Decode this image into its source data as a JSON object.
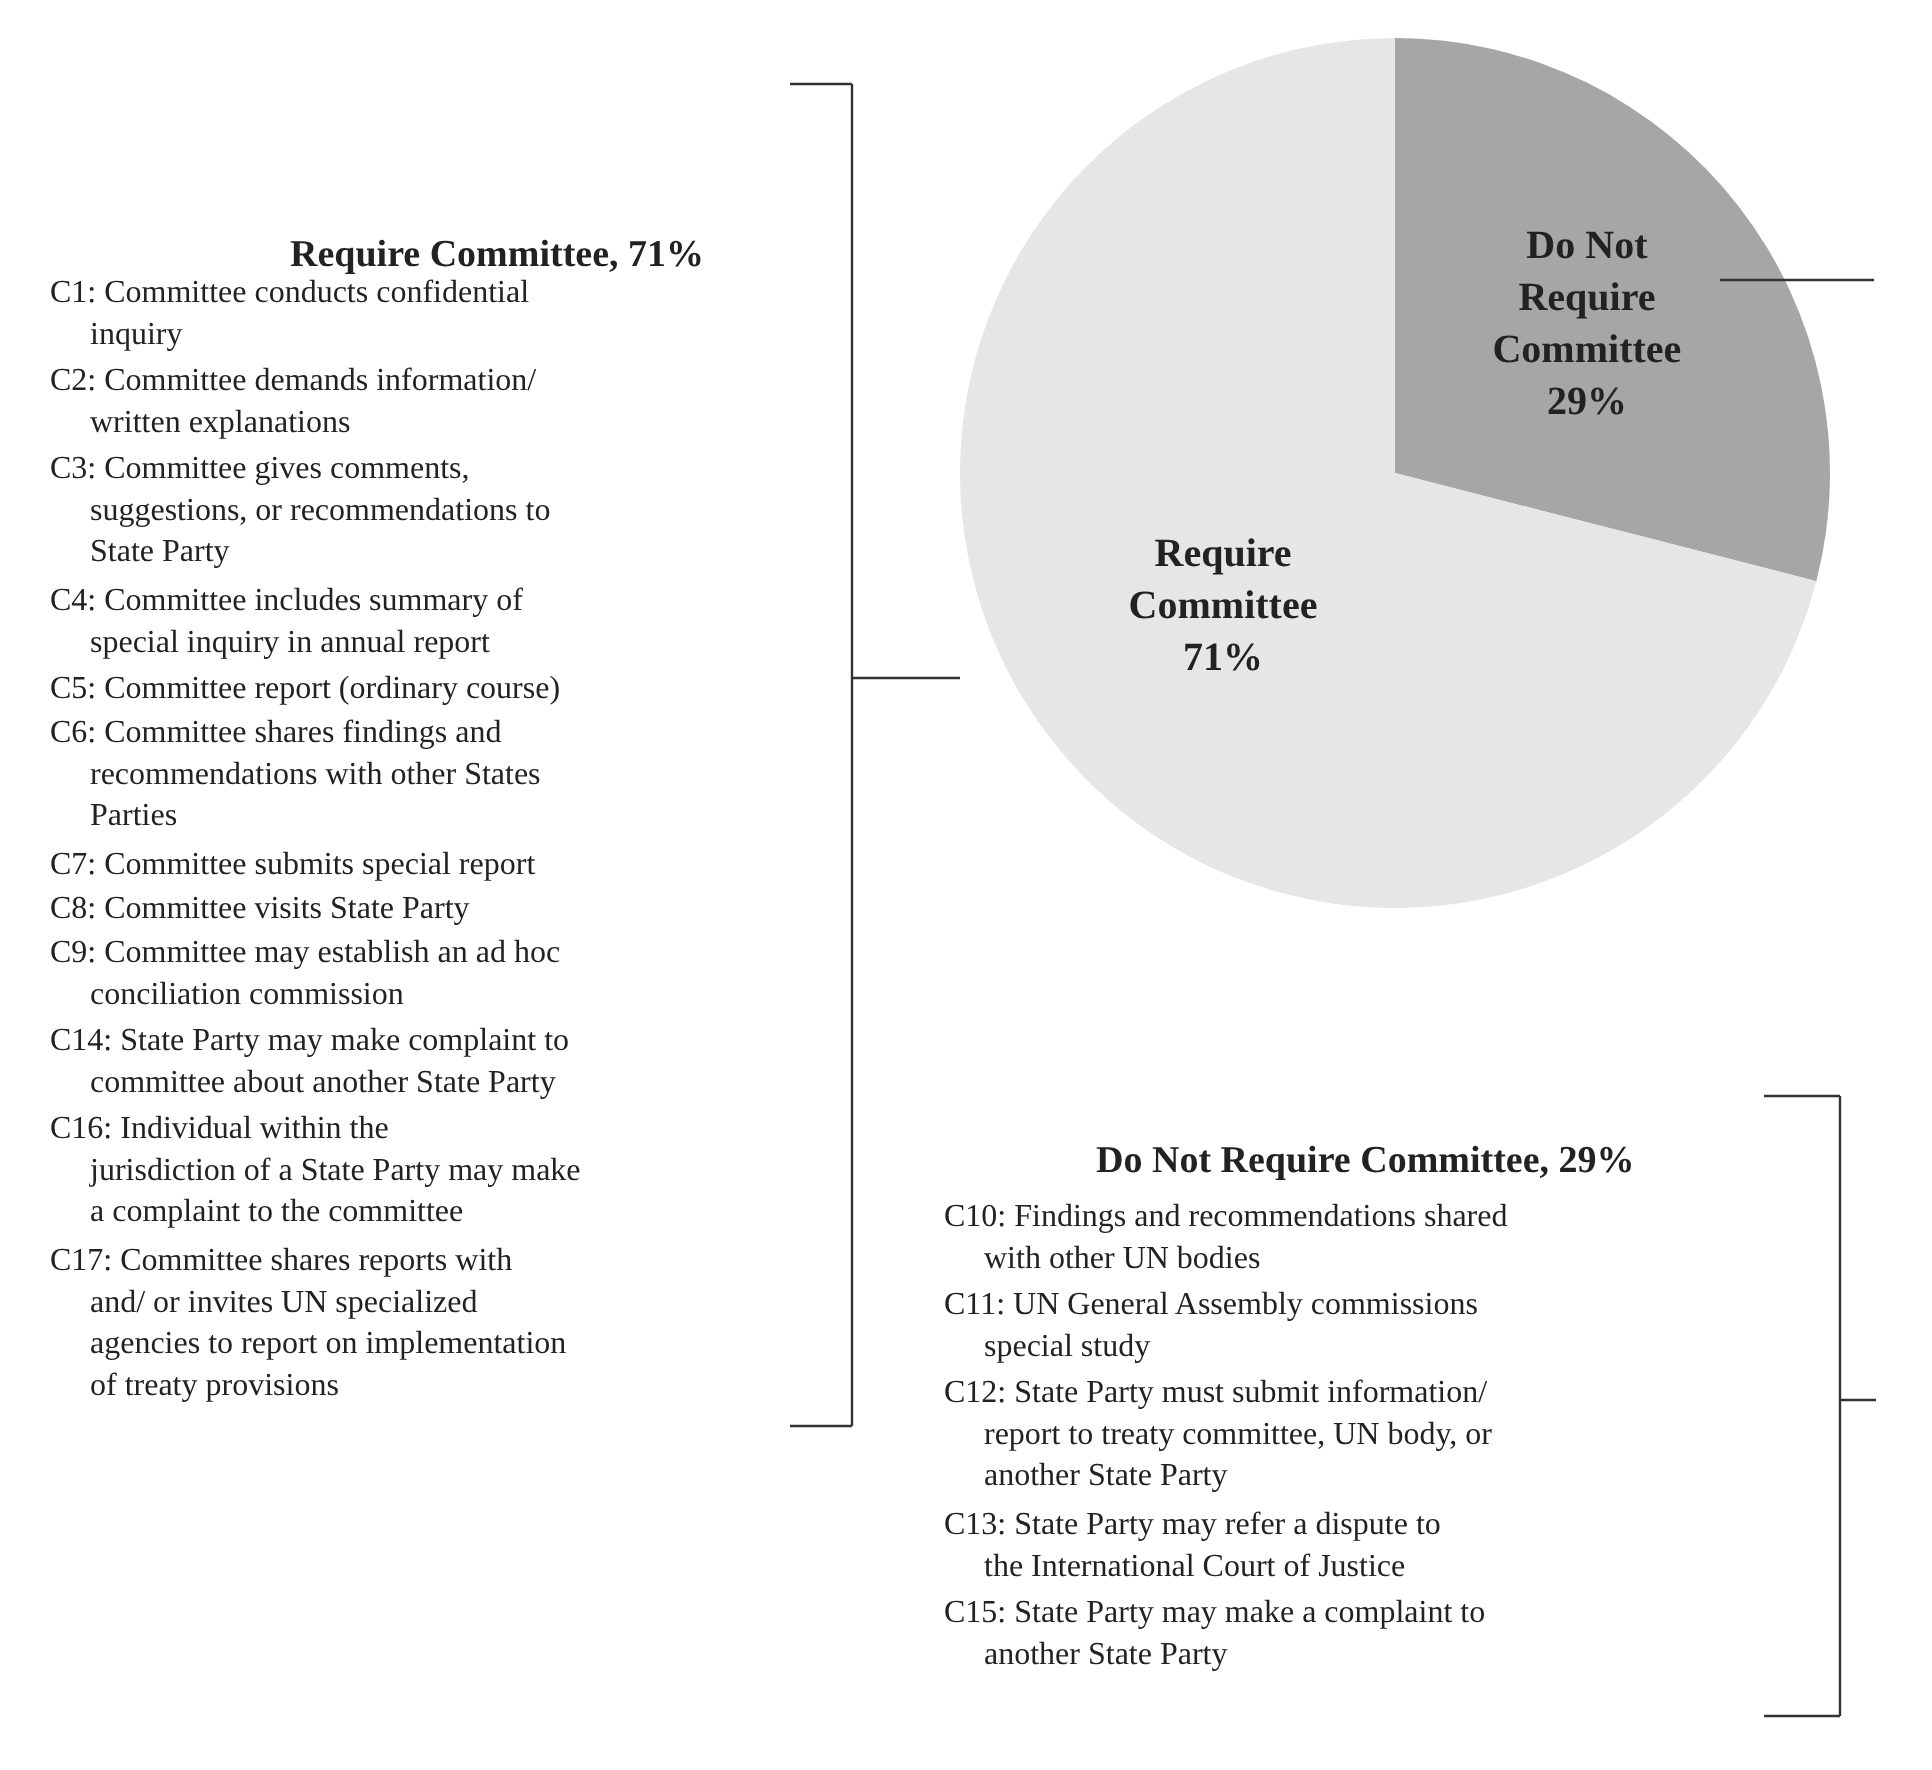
{
  "chart_data": {
    "type": "pie",
    "categories": [
      "Do Not Require Committee",
      "Require Committee"
    ],
    "values": [
      29,
      71
    ],
    "colors": [
      "#a6a6a6",
      "#e6e6e6"
    ],
    "value_labels": [
      "29%",
      "71%"
    ],
    "legend": false,
    "annotations": [
      "Require Committee, 71%",
      "C1: Committee conducts confidential inquiry",
      "C2: Committee demands information/ written explanations",
      "C3: Committee gives comments, suggestions, or recommendations to State Party",
      "C4: Committee includes summary of special inquiry in annual report",
      "C5: Committee report (ordinary course)",
      "C6: Committee shares findings and recommendations with other States Parties",
      "C7: Committee submits special report",
      "C8: Committee visits State Party",
      "C9: Committee may establish an ad hoc conciliation commission",
      "C14: State Party may make complaint to committee about another State Party",
      "C16: Individual within the jurisdiction of a State Party may make a complaint to the committee",
      "C17: Committee shares reports with and/ or invites UN specialized agencies to report on implementation of treaty provisions",
      "Do Not Require Committee, 29%",
      "C10: Findings and recommendations shared with other UN bodies",
      "C11: UN General Assembly commissions special study",
      "C12: State Party must submit information/ report to treaty committee, UN body, or another State Party",
      "C13: State Party may refer a dispute to the International Court of Justice",
      "C15: State Party may make a complaint to another State Party"
    ]
  }
}
